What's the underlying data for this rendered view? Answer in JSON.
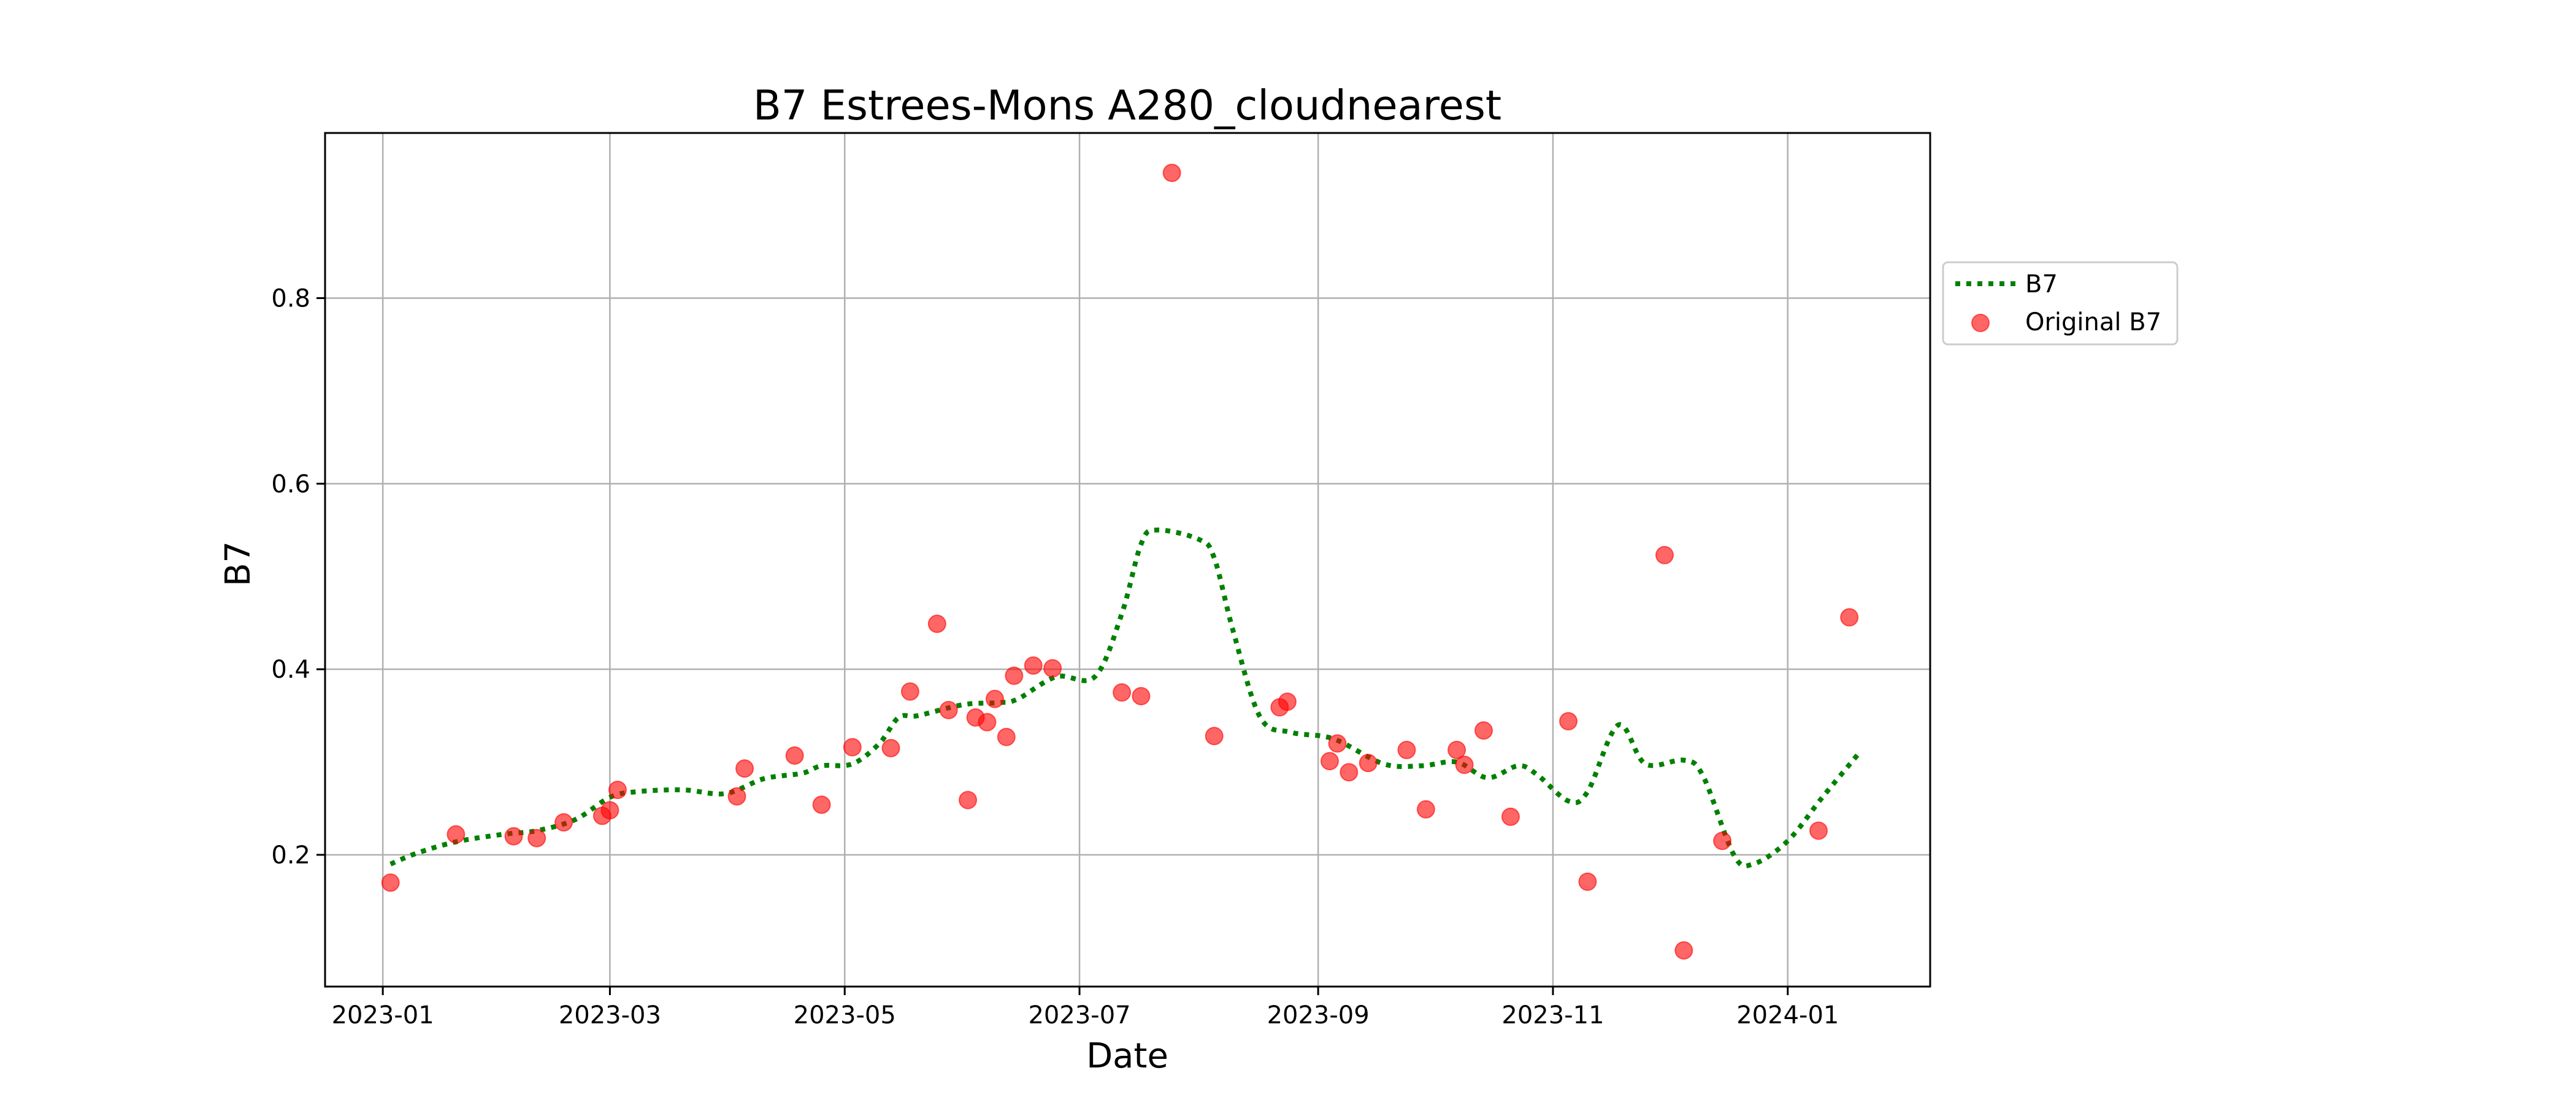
{
  "chart_data": {
    "type": "line",
    "title": "B7 Estrees-Mons A280_cloudnearest",
    "xlabel": "Date",
    "ylabel": "B7",
    "xlim": [
      "2022-12-17",
      "2024-02-07"
    ],
    "ylim": [
      0.058,
      0.978
    ],
    "grid": true,
    "legend_position": "outside-right",
    "x_ticks": [
      "2023-01",
      "2023-03",
      "2023-05",
      "2023-07",
      "2023-09",
      "2023-11",
      "2024-01"
    ],
    "y_ticks": [
      0.2,
      0.4,
      0.6,
      0.8
    ],
    "colors": {
      "smoothed": "#008000",
      "original": "#ff0000"
    },
    "series": [
      {
        "name": "B7",
        "style": "dotted-line",
        "points": [
          [
            "2023-01-03",
            0.19
          ],
          [
            "2023-01-10",
            0.202
          ],
          [
            "2023-01-20",
            0.214
          ],
          [
            "2023-02-01",
            0.222
          ],
          [
            "2023-02-10",
            0.226
          ],
          [
            "2023-02-20",
            0.238
          ],
          [
            "2023-03-01",
            0.262
          ],
          [
            "2023-03-08",
            0.268
          ],
          [
            "2023-03-20",
            0.27
          ],
          [
            "2023-03-31",
            0.266
          ],
          [
            "2023-04-10",
            0.282
          ],
          [
            "2023-04-20",
            0.288
          ],
          [
            "2023-04-25",
            0.296
          ],
          [
            "2023-05-03",
            0.298
          ],
          [
            "2023-05-10",
            0.32
          ],
          [
            "2023-05-15",
            0.348
          ],
          [
            "2023-05-20",
            0.35
          ],
          [
            "2023-06-01",
            0.362
          ],
          [
            "2023-06-10",
            0.364
          ],
          [
            "2023-06-15",
            0.368
          ],
          [
            "2023-06-25",
            0.392
          ],
          [
            "2023-07-05",
            0.392
          ],
          [
            "2023-07-12",
            0.46
          ],
          [
            "2023-07-17",
            0.535
          ],
          [
            "2023-07-21",
            0.55
          ],
          [
            "2023-08-01",
            0.54
          ],
          [
            "2023-08-05",
            0.52
          ],
          [
            "2023-08-10",
            0.44
          ],
          [
            "2023-08-17",
            0.348
          ],
          [
            "2023-08-25",
            0.332
          ],
          [
            "2023-09-05",
            0.325
          ],
          [
            "2023-09-18",
            0.298
          ],
          [
            "2023-09-28",
            0.296
          ],
          [
            "2023-10-07",
            0.3
          ],
          [
            "2023-10-15",
            0.283
          ],
          [
            "2023-10-23",
            0.296
          ],
          [
            "2023-10-28",
            0.286
          ],
          [
            "2023-11-05",
            0.258
          ],
          [
            "2023-11-10",
            0.268
          ],
          [
            "2023-11-18",
            0.34
          ],
          [
            "2023-11-25",
            0.298
          ],
          [
            "2023-12-05",
            0.302
          ],
          [
            "2023-12-10",
            0.285
          ],
          [
            "2023-12-18",
            0.2
          ],
          [
            "2023-12-23",
            0.19
          ],
          [
            "2024-01-01",
            0.215
          ],
          [
            "2024-01-10",
            0.262
          ],
          [
            "2024-01-20",
            0.312
          ]
        ]
      },
      {
        "name": "Original B7",
        "style": "scatter",
        "points": [
          [
            "2023-01-03",
            0.17
          ],
          [
            "2023-01-20",
            0.222
          ],
          [
            "2023-02-04",
            0.22
          ],
          [
            "2023-02-10",
            0.218
          ],
          [
            "2023-02-17",
            0.235
          ],
          [
            "2023-02-27",
            0.242
          ],
          [
            "2023-03-01",
            0.248
          ],
          [
            "2023-03-03",
            0.27
          ],
          [
            "2023-04-03",
            0.263
          ],
          [
            "2023-04-05",
            0.293
          ],
          [
            "2023-04-18",
            0.307
          ],
          [
            "2023-04-25",
            0.254
          ],
          [
            "2023-05-03",
            0.316
          ],
          [
            "2023-05-13",
            0.315
          ],
          [
            "2023-05-18",
            0.376
          ],
          [
            "2023-05-25",
            0.449
          ],
          [
            "2023-05-28",
            0.356
          ],
          [
            "2023-06-02",
            0.259
          ],
          [
            "2023-06-04",
            0.348
          ],
          [
            "2023-06-07",
            0.343
          ],
          [
            "2023-06-09",
            0.368
          ],
          [
            "2023-06-12",
            0.327
          ],
          [
            "2023-06-14",
            0.393
          ],
          [
            "2023-06-19",
            0.404
          ],
          [
            "2023-06-24",
            0.401
          ],
          [
            "2023-07-12",
            0.375
          ],
          [
            "2023-07-17",
            0.371
          ],
          [
            "2023-07-25",
            0.935
          ],
          [
            "2023-08-05",
            0.328
          ],
          [
            "2023-08-22",
            0.359
          ],
          [
            "2023-08-24",
            0.365
          ],
          [
            "2023-09-04",
            0.301
          ],
          [
            "2023-09-06",
            0.32
          ],
          [
            "2023-09-09",
            0.289
          ],
          [
            "2023-09-14",
            0.299
          ],
          [
            "2023-09-24",
            0.313
          ],
          [
            "2023-09-29",
            0.249
          ],
          [
            "2023-10-07",
            0.313
          ],
          [
            "2023-10-09",
            0.297
          ],
          [
            "2023-10-14",
            0.334
          ],
          [
            "2023-10-21",
            0.241
          ],
          [
            "2023-11-05",
            0.344
          ],
          [
            "2023-11-10",
            0.171
          ],
          [
            "2023-11-30",
            0.523
          ],
          [
            "2023-12-05",
            0.097
          ],
          [
            "2023-12-15",
            0.215
          ],
          [
            "2024-01-09",
            0.226
          ],
          [
            "2024-01-17",
            0.456
          ]
        ]
      }
    ]
  }
}
